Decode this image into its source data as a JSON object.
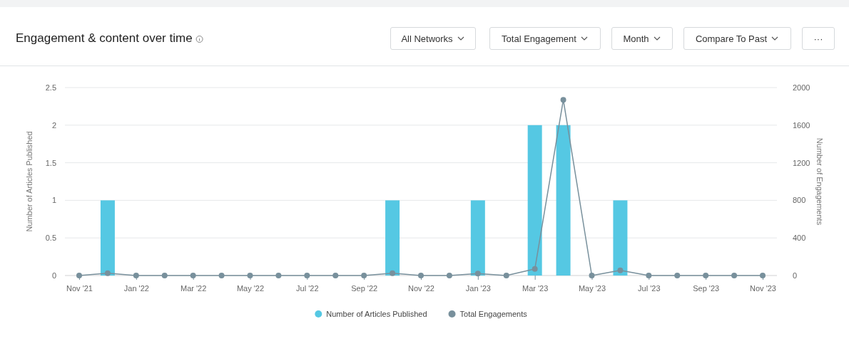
{
  "chart_data": {
    "type": "bar",
    "title": "Engagement & content over time",
    "annotations": [
      "All Networks",
      "Total Engagement",
      "Month",
      "Compare To Past",
      "···"
    ],
    "categories": [
      "Nov '21",
      null,
      "Jan '22",
      null,
      "Mar '22",
      null,
      "May '22",
      null,
      "Jul '22",
      null,
      "Sep '22",
      null,
      "Nov '22",
      null,
      "Jan '23",
      null,
      "Mar '23",
      null,
      "May '23",
      null,
      "Jul '23",
      null,
      "Sep '23",
      null,
      "Nov '23"
    ],
    "series": [
      {
        "name": "Number of Articles Published",
        "color": "#55c8e3",
        "values": [
          0,
          1,
          0,
          0,
          0,
          0,
          0,
          0,
          0,
          0,
          0,
          1,
          0,
          0,
          1,
          0,
          2,
          2,
          0,
          1,
          0,
          0,
          0,
          0,
          0
        ]
      },
      {
        "name": "Total Engagements",
        "type": "line",
        "axis": "y2",
        "color": "#78909c",
        "values": [
          0,
          25,
          0,
          0,
          0,
          0,
          0,
          0,
          0,
          0,
          0,
          25,
          0,
          0,
          20,
          0,
          70,
          1870,
          0,
          55,
          0,
          0,
          0,
          0,
          0
        ]
      }
    ],
    "ylabel": "Number of Articles Published",
    "y2label": "Number of Engagements",
    "ylim": [
      0,
      2.5
    ],
    "yticks": [
      0,
      0.5,
      1,
      1.5,
      2,
      2.5
    ],
    "y2lim": [
      0,
      2000
    ],
    "y2ticks": [
      0,
      400,
      800,
      1200,
      1600,
      2000
    ],
    "grid": "y",
    "legend": "bottom",
    "marker": "circle"
  }
}
